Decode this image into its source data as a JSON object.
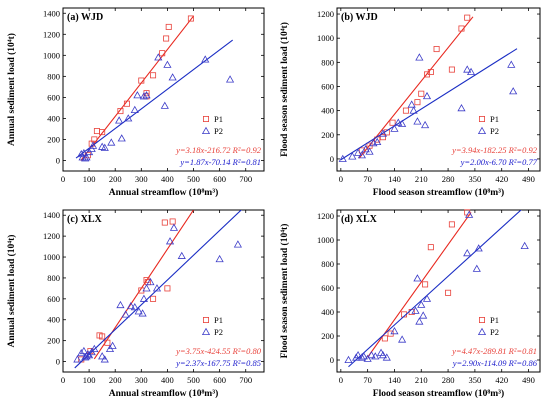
{
  "chart_data": [
    {
      "type": "scatter",
      "title": "(a) WJD",
      "xlabel": "Annual streamflow (10⁸m³)",
      "ylabel": "Annual sediment load (10⁴t)",
      "xlim": [
        0,
        770
      ],
      "ylim": [
        -100,
        1450
      ],
      "xticks": [
        0,
        100,
        200,
        300,
        400,
        500,
        600,
        700
      ],
      "yticks": [
        0,
        200,
        400,
        600,
        800,
        1000,
        1200,
        1400
      ],
      "legend_position": "lower-right",
      "series": [
        {
          "name": "P1",
          "marker": "square",
          "color": "#e8413a",
          "points": [
            [
              95,
              50
            ],
            [
              110,
              160
            ],
            [
              120,
              200
            ],
            [
              130,
              280
            ],
            [
              150,
              270
            ],
            [
              220,
              470
            ],
            [
              245,
              540
            ],
            [
              300,
              760
            ],
            [
              320,
              610
            ],
            [
              320,
              640
            ],
            [
              345,
              810
            ],
            [
              380,
              1020
            ],
            [
              395,
              1160
            ],
            [
              405,
              1270
            ],
            [
              490,
              1350
            ]
          ],
          "fit": {
            "slope": 3.18,
            "intercept": -216.72,
            "x_range": [
              68,
              500
            ]
          }
        },
        {
          "name": "P2",
          "marker": "triangle",
          "color": "#3b3bc8",
          "points": [
            [
              70,
              60
            ],
            [
              75,
              30
            ],
            [
              80,
              70
            ],
            [
              85,
              20
            ],
            [
              90,
              30
            ],
            [
              100,
              80
            ],
            [
              110,
              110
            ],
            [
              115,
              140
            ],
            [
              150,
              130
            ],
            [
              160,
              120
            ],
            [
              185,
              170
            ],
            [
              215,
              380
            ],
            [
              225,
              210
            ],
            [
              250,
              400
            ],
            [
              275,
              480
            ],
            [
              285,
              620
            ],
            [
              310,
              610
            ],
            [
              320,
              620
            ],
            [
              365,
              980
            ],
            [
              390,
              520
            ],
            [
              400,
              910
            ],
            [
              420,
              790
            ],
            [
              545,
              960
            ],
            [
              640,
              770
            ]
          ],
          "fit": {
            "slope": 1.87,
            "intercept": -70.14,
            "x_range": [
              50,
              650
            ]
          }
        }
      ],
      "equations": [
        {
          "text": "y=3.18x-216.72",
          "r2": "R²=0.92",
          "color": "#e8413a"
        },
        {
          "text": "y=1.87x-70.14",
          "r2": "R²=0.81",
          "color": "#1a1acc"
        }
      ]
    },
    {
      "type": "scatter",
      "title": "(b) WJD",
      "xlabel": "Flood season streamflow (10⁸m³)",
      "ylabel": "Flood season sediment load (10⁴t)",
      "xlim": [
        -10,
        520
      ],
      "ylim": [
        -100,
        1250
      ],
      "xticks": [
        0,
        70,
        140,
        210,
        280,
        350,
        420,
        490
      ],
      "yticks": [
        0,
        200,
        400,
        600,
        800,
        1000,
        1200
      ],
      "legend_position": "lower-right",
      "series": [
        {
          "name": "P1",
          "marker": "square",
          "color": "#e8413a",
          "points": [
            [
              55,
              70
            ],
            [
              75,
              110
            ],
            [
              95,
              160
            ],
            [
              110,
              180
            ],
            [
              120,
              220
            ],
            [
              135,
              300
            ],
            [
              170,
              400
            ],
            [
              200,
              470
            ],
            [
              210,
              540
            ],
            [
              225,
              700
            ],
            [
              235,
              720
            ],
            [
              250,
              910
            ],
            [
              290,
              740
            ],
            [
              315,
              1080
            ],
            [
              330,
              1170
            ]
          ],
          "fit": {
            "slope": 3.94,
            "intercept": -182.25,
            "x_range": [
              48,
              345
            ]
          }
        },
        {
          "name": "P2",
          "marker": "triangle",
          "color": "#3b3bc8",
          "points": [
            [
              5,
              0
            ],
            [
              30,
              20
            ],
            [
              45,
              50
            ],
            [
              55,
              30
            ],
            [
              65,
              80
            ],
            [
              75,
              60
            ],
            [
              85,
              130
            ],
            [
              95,
              140
            ],
            [
              110,
              210
            ],
            [
              140,
              250
            ],
            [
              150,
              300
            ],
            [
              160,
              290
            ],
            [
              185,
              450
            ],
            [
              190,
              400
            ],
            [
              200,
              310
            ],
            [
              205,
              840
            ],
            [
              220,
              280
            ],
            [
              225,
              520
            ],
            [
              315,
              420
            ],
            [
              330,
              740
            ],
            [
              340,
              720
            ],
            [
              445,
              780
            ],
            [
              450,
              560
            ]
          ],
          "fit": {
            "slope": 2.0,
            "intercept": -6.7,
            "x_range": [
              0,
              460
            ]
          }
        }
      ],
      "equations": [
        {
          "text": "y=3.94x-182.25",
          "r2": "R²=0.92",
          "color": "#e8413a"
        },
        {
          "text": "y=2.00x-6.70",
          "r2": "R²=0.77",
          "color": "#1a1acc"
        }
      ]
    },
    {
      "type": "scatter",
      "title": "(c) XLX",
      "xlabel": "Annual streamflow (10⁸m³)",
      "ylabel": "Annual sediment load (10⁴t)",
      "xlim": [
        0,
        770
      ],
      "ylim": [
        -100,
        1450
      ],
      "xticks": [
        0,
        100,
        200,
        300,
        400,
        500,
        600,
        700
      ],
      "yticks": [
        0,
        200,
        400,
        600,
        800,
        1000,
        1200,
        1400
      ],
      "legend_position": "lower-right",
      "series": [
        {
          "name": "P1",
          "marker": "square",
          "color": "#e8413a",
          "points": [
            [
              70,
              20
            ],
            [
              105,
              100
            ],
            [
              140,
              250
            ],
            [
              150,
              240
            ],
            [
              170,
              180
            ],
            [
              300,
              680
            ],
            [
              320,
              780
            ],
            [
              325,
              760
            ],
            [
              345,
              600
            ],
            [
              390,
              1330
            ],
            [
              400,
              700
            ],
            [
              420,
              1340
            ]
          ],
          "fit": {
            "slope": 3.75,
            "intercept": -424.55,
            "x_range": [
              120,
              500
            ]
          }
        },
        {
          "name": "P2",
          "marker": "triangle",
          "color": "#3b3bc8",
          "points": [
            [
              55,
              20
            ],
            [
              70,
              80
            ],
            [
              80,
              100
            ],
            [
              85,
              40
            ],
            [
              90,
              50
            ],
            [
              95,
              70
            ],
            [
              100,
              60
            ],
            [
              110,
              90
            ],
            [
              120,
              120
            ],
            [
              150,
              50
            ],
            [
              160,
              20
            ],
            [
              180,
              120
            ],
            [
              190,
              150
            ],
            [
              220,
              540
            ],
            [
              240,
              450
            ],
            [
              260,
              530
            ],
            [
              275,
              520
            ],
            [
              290,
              480
            ],
            [
              305,
              460
            ],
            [
              310,
              600
            ],
            [
              320,
              700
            ],
            [
              335,
              760
            ],
            [
              360,
              700
            ],
            [
              410,
              1150
            ],
            [
              425,
              1280
            ],
            [
              455,
              1010
            ],
            [
              600,
              980
            ],
            [
              670,
              1120
            ]
          ],
          "fit": {
            "slope": 2.37,
            "intercept": -167.75,
            "x_range": [
              45,
              690
            ]
          }
        }
      ],
      "equations": [
        {
          "text": "y=3.75x-424.55",
          "r2": "R²=0.80",
          "color": "#e8413a"
        },
        {
          "text": "y=2.37x-167.75",
          "r2": "R²=0.85",
          "color": "#1a1acc"
        }
      ]
    },
    {
      "type": "scatter",
      "title": "(d) XLX",
      "xlabel": "Flood season streamflow (10⁸m³)",
      "ylabel": "Flood season sediment load (10⁴t)",
      "xlim": [
        -10,
        520
      ],
      "ylim": [
        -100,
        1250
      ],
      "xticks": [
        0,
        70,
        140,
        210,
        280,
        350,
        420,
        490
      ],
      "yticks": [
        0,
        200,
        400,
        600,
        800,
        1000,
        1200
      ],
      "legend_position": "lower-right",
      "series": [
        {
          "name": "P1",
          "marker": "square",
          "color": "#e8413a",
          "points": [
            [
              115,
              180
            ],
            [
              130,
              220
            ],
            [
              165,
              380
            ],
            [
              185,
              400
            ],
            [
              220,
              630
            ],
            [
              235,
              940
            ],
            [
              280,
              560
            ],
            [
              290,
              1130
            ],
            [
              330,
              1230
            ]
          ],
          "fit": {
            "slope": 4.47,
            "intercept": -289.81,
            "x_range": [
              70,
              340
            ]
          }
        },
        {
          "name": "P2",
          "marker": "triangle",
          "color": "#3b3bc8",
          "points": [
            [
              20,
              0
            ],
            [
              40,
              20
            ],
            [
              45,
              40
            ],
            [
              55,
              20
            ],
            [
              60,
              30
            ],
            [
              70,
              10
            ],
            [
              80,
              40
            ],
            [
              90,
              30
            ],
            [
              105,
              60
            ],
            [
              110,
              40
            ],
            [
              120,
              20
            ],
            [
              140,
              240
            ],
            [
              160,
              170
            ],
            [
              195,
              410
            ],
            [
              200,
              680
            ],
            [
              205,
              320
            ],
            [
              210,
              460
            ],
            [
              215,
              370
            ],
            [
              225,
              510
            ],
            [
              330,
              890
            ],
            [
              335,
              1210
            ],
            [
              355,
              760
            ],
            [
              360,
              930
            ],
            [
              480,
              950
            ]
          ],
          "fit": {
            "slope": 2.9,
            "intercept": -114.09,
            "x_range": [
              20,
              490
            ]
          }
        }
      ],
      "equations": [
        {
          "text": "y=4.47x-289.81",
          "r2": "R²=0.81",
          "color": "#e8413a"
        },
        {
          "text": "y=2.90x-114.09",
          "r2": "R²=0.86",
          "color": "#1a1acc"
        }
      ]
    }
  ]
}
